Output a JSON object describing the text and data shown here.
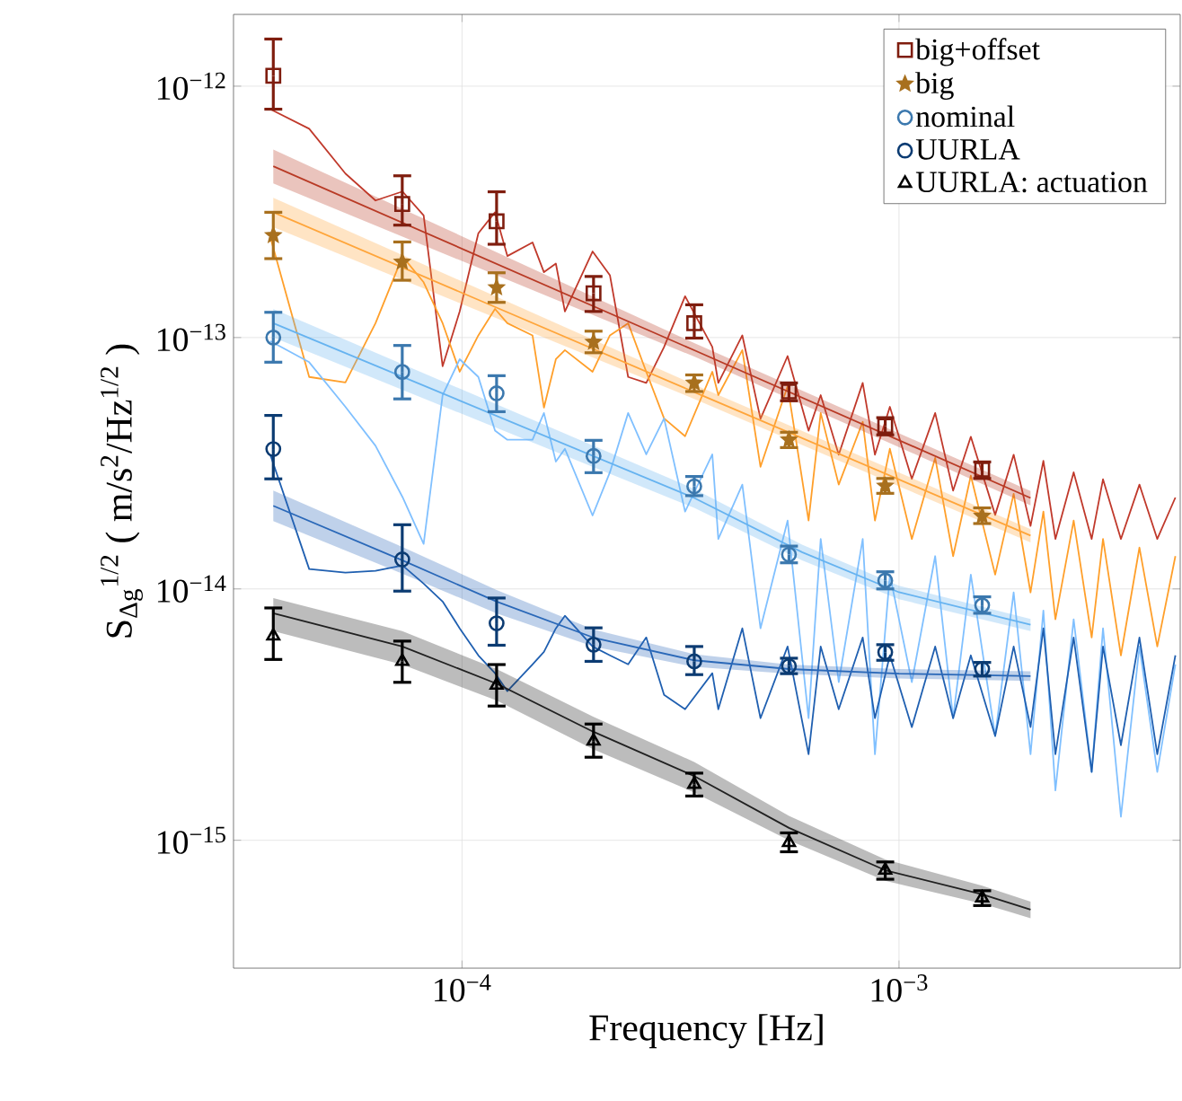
{
  "chart_data": {
    "type": "scatter",
    "log": "xy",
    "grid": true,
    "legend": "top right",
    "xlabel": "Frequency [Hz]",
    "ylabel": "S$_{Δg}$$^{1/2}$ ( m/s$^{2}$/Hz$^{1/2}$ )",
    "xlim": [
      3e-05,
      0.0044
    ],
    "ylim": [
      3.1e-16,
      1.93e-12
    ],
    "xticks": [
      {
        "value": 0.0001,
        "label": "10$^{−4}$"
      },
      {
        "value": 0.001,
        "label": "10$^{−3}$"
      }
    ],
    "yticks": [
      {
        "value": 1e-15,
        "label": "10$^{−15}$"
      },
      {
        "value": 1e-14,
        "label": "10$^{−14}$"
      },
      {
        "value": 1e-13,
        "label": "10$^{−13}$"
      },
      {
        "value": 1e-12,
        "label": "10$^{−12}$"
      }
    ],
    "x": [
      3.7e-05,
      7.3e-05,
      0.00012,
      0.0002,
      0.00034,
      0.00056,
      0.00093,
      0.00155
    ],
    "series": [
      {
        "type": "line",
        "marker": "none",
        "color": "#c0392b",
        "x": [
          3.64e-05,
          4.47e-05,
          5.41e-05,
          6.34e-05,
          7.31e-05,
          8.17e-05,
          9.03e-05,
          9.88e-05,
          0.000109,
          0.000119,
          0.000127,
          0.000145,
          0.000154,
          0.000164,
          0.000172,
          0.000199,
          0.000218,
          0.00024,
          0.000264,
          0.00029,
          0.000324,
          0.000374,
          0.000386,
          0.000438,
          0.000482,
          0.000556,
          0.000621,
          0.000662,
          0.000728,
          0.000826,
          0.000881,
          0.000953,
          0.00107,
          0.00121,
          0.00133,
          0.00146,
          0.00166,
          0.00183,
          0.002,
          0.00214,
          0.00228,
          0.00251,
          0.00276,
          0.00293,
          0.00322,
          0.00355,
          0.0039,
          0.00429
        ],
        "values": [
          8.1e-13,
          6.77e-13,
          4.49e-13,
          3.51e-13,
          3.81e-13,
          3.06e-13,
          7.69e-14,
          1.27e-13,
          2.6e-13,
          3.15e-13,
          2.11e-13,
          2.39e-13,
          1.82e-13,
          1.97e-13,
          1.27e-13,
          2.2e-13,
          1.77e-13,
          6.97e-14,
          6.6e-14,
          9.17e-14,
          1.46e-13,
          9.17e-14,
          6.6e-14,
          1.02e-13,
          4.75e-14,
          8.44e-14,
          4.26e-14,
          5.9e-14,
          3.42e-14,
          6.6e-14,
          3.42e-14,
          5.3e-14,
          2.74e-14,
          5.01e-14,
          2.46e-14,
          4.03e-14,
          1.97e-14,
          3.42e-14,
          1.78e-14,
          3.23e-14,
          1.58e-14,
          2.91e-14,
          1.58e-14,
          2.73e-14,
          1.58e-14,
          2.6e-14,
          1.58e-14,
          2.31e-14
        ]
      },
      {
        "type": "line",
        "marker": "none",
        "color": "#ff9f2a",
        "x": [
          3.64e-05,
          4.47e-05,
          5.41e-05,
          6.34e-05,
          7.31e-05,
          8.17e-05,
          9.03e-05,
          9.88e-05,
          0.000109,
          0.000119,
          0.000127,
          0.000145,
          0.000154,
          0.000164,
          0.000172,
          0.000199,
          0.000218,
          0.00024,
          0.000264,
          0.00029,
          0.000324,
          0.000374,
          0.000386,
          0.000438,
          0.000482,
          0.000556,
          0.000621,
          0.000662,
          0.000728,
          0.000826,
          0.000881,
          0.000953,
          0.00107,
          0.00121,
          0.00133,
          0.00146,
          0.00166,
          0.00183,
          0.002,
          0.00214,
          0.00228,
          0.00251,
          0.00276,
          0.00293,
          0.00322,
          0.00355,
          0.0039,
          0.00429
        ],
        "values": [
          2.52e-13,
          6.97e-14,
          6.63e-14,
          1.14e-13,
          2.1e-13,
          1.66e-13,
          1.14e-13,
          7.31e-14,
          1.02e-13,
          1.3e-13,
          1.14e-13,
          1.02e-13,
          5.26e-14,
          8.2e-14,
          8.91e-14,
          7.31e-14,
          1.02e-13,
          1.14e-13,
          7.31e-14,
          4.77e-14,
          4.05e-14,
          7.31e-14,
          5.9e-14,
          8.91e-14,
          3.06e-14,
          6.41e-14,
          1.87e-14,
          5.01e-14,
          2.6e-14,
          4.62e-14,
          1.87e-14,
          3.61e-14,
          1.58e-14,
          3.32e-14,
          1.35e-14,
          2.82e-14,
          1.14e-14,
          2.39e-14,
          9.68e-15,
          2.03e-14,
          7.57e-15,
          1.87e-14,
          6.41e-15,
          1.58e-14,
          5.44e-15,
          1.46e-14,
          5.9e-15,
          1.35e-14
        ]
      },
      {
        "type": "line",
        "marker": "none",
        "color": "#80c0ff",
        "x": [
          3.64e-05,
          4.47e-05,
          5.41e-05,
          6.34e-05,
          7.31e-05,
          8.17e-05,
          9.03e-05,
          9.88e-05,
          0.000109,
          0.000119,
          0.000127,
          0.000145,
          0.000154,
          0.000164,
          0.000172,
          0.000199,
          0.000218,
          0.00024,
          0.000264,
          0.00029,
          0.000324,
          0.000374,
          0.000386,
          0.000438,
          0.000482,
          0.000556,
          0.000621,
          0.000662,
          0.000728,
          0.000826,
          0.000881,
          0.000953,
          0.00107,
          0.00121,
          0.00133,
          0.00146,
          0.00166,
          0.00183,
          0.002,
          0.00214,
          0.00228,
          0.00251,
          0.00276,
          0.00293,
          0.00322,
          0.00355,
          0.0039,
          0.00429
        ],
        "values": [
          9.68e-14,
          7.98e-14,
          5.3e-14,
          3.71e-14,
          2.32e-14,
          1.51e-14,
          5.9e-14,
          8.2e-14,
          6.97e-14,
          4.26e-14,
          3.92e-14,
          3.92e-14,
          5.01e-14,
          3.21e-14,
          3.61e-14,
          1.96e-14,
          2.91e-14,
          5.01e-14,
          3.43e-14,
          4.77e-14,
          2.03e-14,
          3.43e-14,
          1.58e-14,
          2.6e-14,
          6.97e-15,
          1.87e-14,
          3.06e-15,
          1.58e-14,
          4.26e-15,
          1.58e-14,
          2.2e-15,
          1.14e-14,
          4.26e-15,
          1.35e-14,
          3.06e-15,
          1.14e-14,
          2.6e-15,
          9.68e-15,
          2.2e-15,
          8.2e-15,
          1.58e-15,
          7.57e-15,
          1.87e-15,
          6.97e-15,
          1.24e-15,
          5.9e-15,
          1.87e-15,
          5.01e-15
        ]
      },
      {
        "type": "line",
        "marker": "none",
        "color": "#1f5fb0",
        "x": [
          3.64e-05,
          4.47e-05,
          5.41e-05,
          6.34e-05,
          7.31e-05,
          8.17e-05,
          9.03e-05,
          9.88e-05,
          0.000109,
          0.000119,
          0.000127,
          0.000145,
          0.000154,
          0.000164,
          0.000172,
          0.000199,
          0.000218,
          0.00024,
          0.000264,
          0.00029,
          0.000324,
          0.000374,
          0.000386,
          0.000438,
          0.000482,
          0.000556,
          0.000621,
          0.000662,
          0.000728,
          0.000826,
          0.000881,
          0.000953,
          0.00107,
          0.00121,
          0.00133,
          0.00146,
          0.00166,
          0.00183,
          0.002,
          0.00214,
          0.00228,
          0.00251,
          0.00276,
          0.00293,
          0.00322,
          0.00355,
          0.0039,
          0.00429
        ],
        "values": [
          3.43e-14,
          1.2e-14,
          1.16e-14,
          1.18e-14,
          1.24e-14,
          1.05e-14,
          8.91e-15,
          6.97e-15,
          5.44e-15,
          4.62e-15,
          3.92e-15,
          5.01e-15,
          5.62e-15,
          6.97e-15,
          7.82e-15,
          5.9e-15,
          5.44e-15,
          5.01e-15,
          6.41e-15,
          3.79e-15,
          3.32e-15,
          4.62e-15,
          3.32e-15,
          6.97e-15,
          3.06e-15,
          5.9e-15,
          2.2e-15,
          5.9e-15,
          3.32e-15,
          6.41e-15,
          3.06e-15,
          5.44e-15,
          2.82e-15,
          5.9e-15,
          3.06e-15,
          5.44e-15,
          2.6e-15,
          5.9e-15,
          2.82e-15,
          6.97e-15,
          2.2e-15,
          6.41e-15,
          1.87e-15,
          5.9e-15,
          2.39e-15,
          6.41e-15,
          2.2e-15,
          5.44e-15
        ]
      },
      {
        "type": "line",
        "marker": "none",
        "color": "#b83a25",
        "x": [
          3.7e-05,
          0.00034,
          0.002
        ],
        "values": [
          4.8e-13,
          8.9e-14,
          2.3e-14
        ],
        "lower": [
          4.1e-13,
          8.4e-14,
          2.15e-14
        ],
        "upper": [
          5.6e-13,
          9.5e-14,
          2.45e-14
        ]
      },
      {
        "type": "line",
        "marker": "none",
        "color": "#ffa53a",
        "x": [
          3.7e-05,
          0.00034,
          0.002
        ],
        "values": [
          3.15e-13,
          6.07e-14,
          1.63e-14
        ],
        "lower": [
          2.75e-13,
          5.7e-14,
          1.53e-14
        ],
        "upper": [
          3.6e-13,
          6.5e-14,
          1.73e-14
        ]
      },
      {
        "type": "line",
        "marker": "none",
        "color": "#66b3f0",
        "x": [
          3.7e-05,
          0.00034,
          0.0006,
          0.001,
          0.002
        ],
        "values": [
          1.14e-13,
          2.3e-14,
          1.4e-14,
          9.7e-15,
          7.2e-15
        ],
        "lower": [
          1e-13,
          2.1e-14,
          1.3e-14,
          9.1e-15,
          6.8e-15
        ],
        "upper": [
          1.3e-13,
          2.5e-14,
          1.5e-14,
          1.03e-14,
          7.6e-15
        ]
      },
      {
        "type": "line",
        "marker": "none",
        "color": "#2a68b8",
        "x": [
          3.7e-05,
          7.3e-05,
          0.00012,
          0.0002,
          0.00034,
          0.00056,
          0.001,
          0.002
        ],
        "values": [
          2.14e-14,
          1.3e-14,
          8.9e-15,
          6.4e-15,
          5.2e-15,
          4.8e-15,
          4.6e-15,
          4.5e-15
        ],
        "lower": [
          1.86e-14,
          1.15e-14,
          8e-15,
          5.9e-15,
          4.9e-15,
          4.6e-15,
          4.4e-15,
          4.3e-15
        ],
        "upper": [
          2.46e-14,
          1.47e-14,
          9.9e-15,
          6.9e-15,
          5.5e-15,
          5e-15,
          4.8e-15,
          4.7e-15
        ]
      },
      {
        "type": "line",
        "marker": "none",
        "color": "#202020",
        "x": [
          3.7e-05,
          7.3e-05,
          0.00012,
          0.0002,
          0.00034,
          0.00056,
          0.00093,
          0.00155,
          0.002
        ],
        "values": [
          8e-15,
          5.9e-15,
          4.2e-15,
          2.7e-15,
          1.8e-15,
          1.12e-15,
          7.6e-16,
          6.1e-16,
          5.3e-16
        ],
        "lower": [
          6.8e-15,
          5e-15,
          3.6e-15,
          2.3e-15,
          1.55e-15,
          1e-15,
          6.9e-16,
          5.6e-16,
          4.9e-16
        ],
        "upper": [
          9.2e-15,
          6.8e-15,
          4.8e-15,
          3.1e-15,
          2.05e-15,
          1.25e-15,
          8.4e-16,
          6.6e-16,
          5.7e-16
        ]
      },
      {
        "name": "big+offset",
        "marker": "square",
        "color": "#7f1d0e",
        "values": [
          1.1e-12,
          3.4e-13,
          2.9e-13,
          1.5e-13,
          1.14e-13,
          6.1e-14,
          4.45e-14,
          2.98e-14
        ],
        "errors": [
          [
            8.1e-13,
            1.54e-12
          ],
          [
            2.8e-13,
            4.4e-13
          ],
          [
            2.35e-13,
            3.8e-13
          ],
          [
            1.27e-13,
            1.75e-13
          ],
          [
            9.95e-14,
            1.35e-13
          ],
          [
            5.6e-14,
            6.6e-14
          ],
          [
            4.1e-14,
            4.8e-14
          ],
          [
            2.75e-14,
            3.2e-14
          ]
        ]
      },
      {
        "name": "big",
        "marker": "star",
        "color": "#a8701e",
        "values": [
          2.55e-13,
          2e-13,
          1.58e-13,
          9.6e-14,
          6.6e-14,
          3.92e-14,
          2.57e-14,
          1.95e-14
        ],
        "errors": [
          [
            2.06e-13,
            3.15e-13
          ],
          [
            1.69e-13,
            2.4e-13
          ],
          [
            1.38e-13,
            1.81e-13
          ],
          [
            8.7e-14,
            1.06e-13
          ],
          [
            6.1e-14,
            7.1e-14
          ],
          [
            3.65e-14,
            4.2e-14
          ],
          [
            2.4e-14,
            2.75e-14
          ],
          [
            1.82e-14,
            2.1e-14
          ]
        ]
      },
      {
        "name": "nominal",
        "marker": "circle",
        "color": "#3b78ae",
        "values": [
          1e-13,
          7.3e-14,
          6e-14,
          3.38e-14,
          2.56e-14,
          1.37e-14,
          1.08e-14,
          8.6e-15
        ],
        "errors": [
          [
            7.98e-14,
            1.26e-13
          ],
          [
            5.7e-14,
            9.3e-14
          ],
          [
            5.07e-14,
            7.05e-14
          ],
          [
            2.9e-14,
            3.9e-14
          ],
          [
            2.35e-14,
            2.8e-14
          ],
          [
            1.27e-14,
            1.48e-14
          ],
          [
            1e-14,
            1.17e-14
          ],
          [
            8e-15,
            9.3e-15
          ]
        ]
      },
      {
        "name": "UURLA",
        "marker": "circle",
        "color": "#0b3b72",
        "values": [
          3.6e-14,
          1.31e-14,
          7.3e-15,
          6e-15,
          5.15e-15,
          4.93e-15,
          5.6e-15,
          4.8e-15
        ],
        "errors": [
          [
            2.74e-14,
            4.9e-14
          ],
          [
            9.8e-15,
            1.8e-14
          ],
          [
            5.97e-15,
            9.2e-15
          ],
          [
            5.15e-15,
            7e-15
          ],
          [
            4.56e-15,
            5.9e-15
          ],
          [
            4.6e-15,
            5.3e-15
          ],
          [
            5.2e-15,
            6e-15
          ],
          [
            4.5e-15,
            5.1e-15
          ]
        ]
      },
      {
        "name": "UURLA: actuation",
        "marker": "triangle",
        "color": "#000000",
        "values": [
          6.5e-15,
          5.15e-15,
          4.14e-15,
          2.48e-15,
          1.67e-15,
          9.8e-16,
          7.6e-16,
          5.9e-16
        ],
        "errors": [
          [
            5.24e-15,
            8.4e-15
          ],
          [
            4.25e-15,
            6.2e-15
          ],
          [
            3.42e-15,
            5e-15
          ],
          [
            2.14e-15,
            2.9e-15
          ],
          [
            1.5e-15,
            1.85e-15
          ],
          [
            9e-16,
            1.07e-15
          ],
          [
            7e-16,
            8.2e-16
          ],
          [
            5.5e-16,
            6.3e-16
          ]
        ]
      }
    ]
  }
}
